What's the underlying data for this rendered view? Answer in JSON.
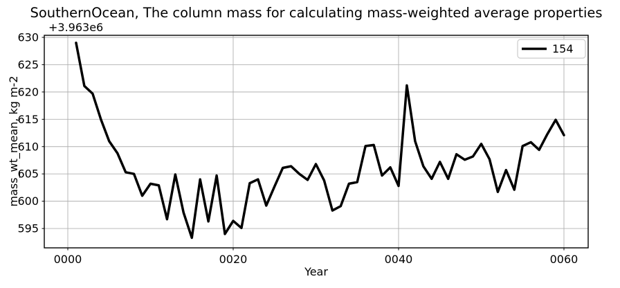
{
  "figure": {
    "background": "#ffffff",
    "grid_color": "#b0b0b0",
    "spine_color": "#000000",
    "text_color": "#000000"
  },
  "chart_data": {
    "type": "line",
    "title": "SouthernOcean, The column mass for calculating mass-weighted average properties",
    "xlabel": "Year",
    "ylabel": "mass_wt_mean, kg m-2",
    "y_offset": "+3.963e6",
    "grid": true,
    "legend_position": "upper right",
    "x_ticks": [
      "0000",
      "0020",
      "0040",
      "0060"
    ],
    "x_tick_values": [
      0,
      20,
      40,
      60
    ],
    "y_ticks": [
      595,
      600,
      605,
      610,
      615,
      620,
      625,
      630
    ],
    "xlim": [
      -2.845,
      62.93
    ],
    "ylim": [
      591.46,
      630.38
    ],
    "series": [
      {
        "name": "154",
        "color": "#000000",
        "linewidth": 3.5,
        "x": [
          1,
          2,
          3,
          4,
          5,
          6,
          7,
          8,
          9,
          10,
          11,
          12,
          13,
          14,
          15,
          16,
          17,
          18,
          19,
          20,
          21,
          22,
          23,
          24,
          25,
          26,
          27,
          28,
          29,
          30,
          31,
          32,
          33,
          34,
          35,
          36,
          37,
          38,
          39,
          40,
          41,
          42,
          43,
          44,
          45,
          46,
          47,
          48,
          49,
          50,
          51,
          52,
          53,
          54,
          55,
          56,
          57,
          58,
          59,
          60
        ],
        "y": [
          629.0,
          621.1,
          619.7,
          615.0,
          611.0,
          608.8,
          605.3,
          605.0,
          601.0,
          603.2,
          602.9,
          596.7,
          604.9,
          597.9,
          593.3,
          604.0,
          596.3,
          604.7,
          594.0,
          596.4,
          595.1,
          603.3,
          604.0,
          599.2,
          602.7,
          606.1,
          606.4,
          605.0,
          603.9,
          606.8,
          603.8,
          598.3,
          599.1,
          603.2,
          603.5,
          610.1,
          610.3,
          604.7,
          606.2,
          602.8,
          621.2,
          611.0,
          606.4,
          604.1,
          607.2,
          604.1,
          608.6,
          607.6,
          608.2,
          610.5,
          607.7,
          601.7,
          605.7,
          602.1,
          610.1,
          610.8,
          609.4,
          612.3,
          614.9,
          612.1
        ]
      }
    ]
  }
}
